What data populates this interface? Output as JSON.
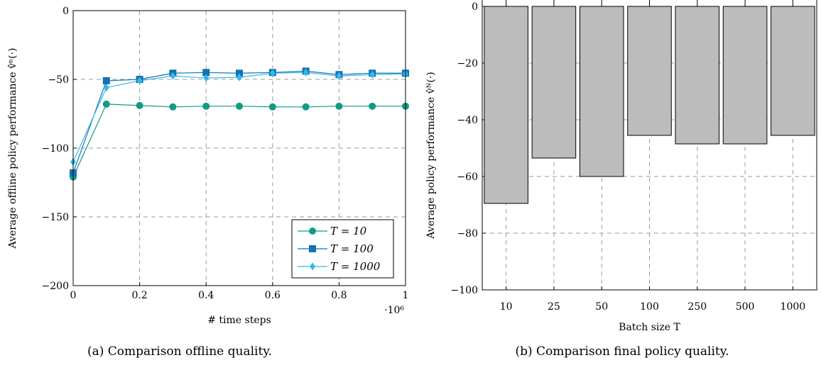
{
  "chart_data": [
    {
      "type": "line",
      "caption": "(a) Comparison offline quality.",
      "xlabel": "# time steps",
      "ylabel": "Average offline policy performance v̂ⁿ(·)",
      "x_multiplier": "·10⁶",
      "xlim": [
        0,
        1
      ],
      "ylim": [
        -200,
        0
      ],
      "xticks": [
        0,
        0.2,
        0.4,
        0.6,
        0.8,
        1
      ],
      "xtick_labels": [
        "0",
        "0.2",
        "0.4",
        "0.6",
        "0.8",
        "1"
      ],
      "yticks": [
        0,
        -50,
        -100,
        -150,
        -200
      ],
      "ytick_labels": [
        "0",
        "−50",
        "−100",
        "−150",
        "−200"
      ],
      "grid": true,
      "legend_position": "bottom-right",
      "x": [
        0,
        0.1,
        0.2,
        0.3,
        0.4,
        0.5,
        0.6,
        0.7,
        0.8,
        0.9,
        1.0
      ],
      "series": [
        {
          "name": "T = 10",
          "color": "#119a86",
          "marker": "circle",
          "values": [
            -121,
            -68,
            -69,
            -70,
            -69.5,
            -69.5,
            -70,
            -70,
            -69.5,
            -69.5,
            -69.5
          ]
        },
        {
          "name": "T = 100",
          "color": "#1272b2",
          "marker": "square",
          "values": [
            -118,
            -51,
            -50,
            -45.5,
            -45,
            -45.5,
            -45,
            -44,
            -46.5,
            -45.5,
            -45.5
          ]
        },
        {
          "name": "T = 1000",
          "color": "#35b7ec",
          "marker": "diamond",
          "values": [
            -110,
            -56,
            -51,
            -47.5,
            -49,
            -48.5,
            -45.5,
            -45,
            -47.5,
            -46.5,
            -46
          ]
        }
      ]
    },
    {
      "type": "bar",
      "caption": "(b) Comparison final policy quality.",
      "xlabel": "Batch size T",
      "ylabel": "Average policy performance v̂ᴺ(·)",
      "categories": [
        "10",
        "25",
        "50",
        "100",
        "250",
        "500",
        "1000"
      ],
      "values": [
        -69.5,
        -53.5,
        -60,
        -45.5,
        -48.5,
        -48.5,
        -45.5
      ],
      "ylim": [
        -100,
        0
      ],
      "yticks": [
        0,
        -20,
        -40,
        -60,
        -80,
        -100
      ],
      "ytick_labels": [
        "0",
        "−20",
        "−40",
        "−60",
        "−80",
        "−100"
      ],
      "grid": true,
      "bar_color": "#bcbcbc"
    }
  ]
}
